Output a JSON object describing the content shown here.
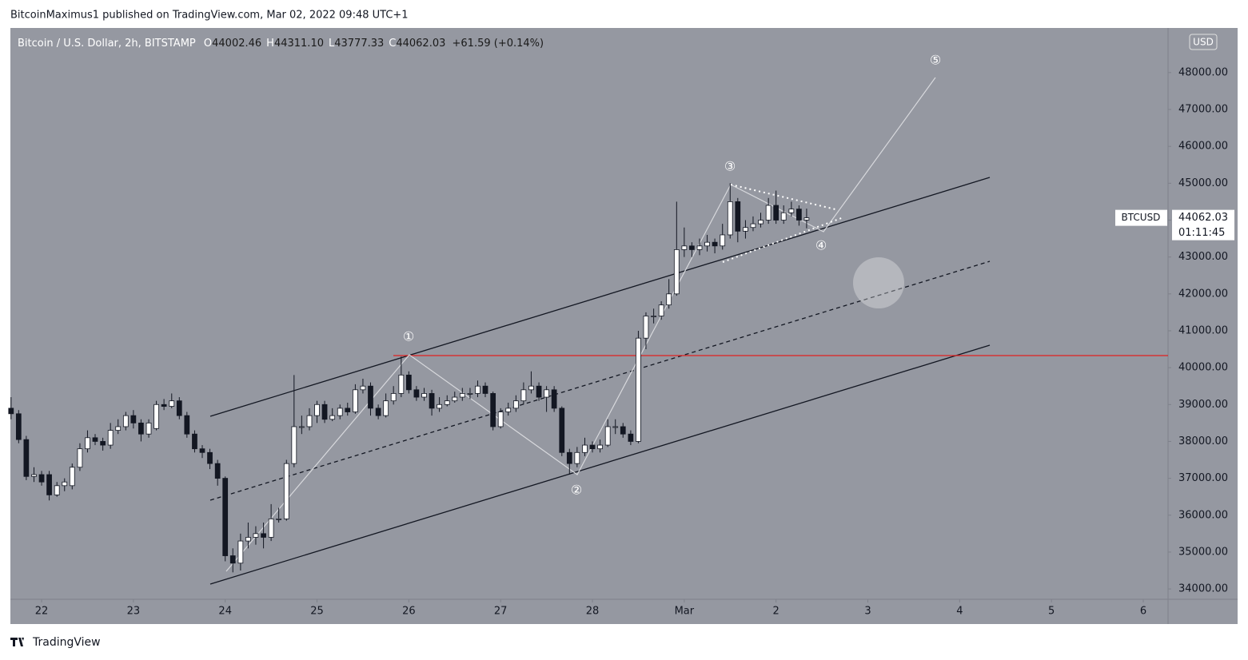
{
  "published": "BitcoinMaximus1 published on TradingView.com, Mar 02, 2022 09:48 UTC+1",
  "footer": "TradingView",
  "chart_data": {
    "type": "candlestick",
    "title": "Bitcoin / U.S. Dollar, 2h, BITSTAMP",
    "ohlc_legend": [
      {
        "label": "O",
        "value": "44002.46"
      },
      {
        "label": "H",
        "value": "44311.10"
      },
      {
        "label": "L",
        "value": "43777.33"
      },
      {
        "label": "C",
        "value": "44062.03"
      }
    ],
    "change": "+61.59 (+0.14%)",
    "currency": "USD",
    "price_label": {
      "symbol": "BTCUSD",
      "price": 44062.03,
      "countdown": "01:11:45"
    },
    "annotations": [
      "①",
      "②",
      "③",
      "④",
      "⑤"
    ],
    "up_color": "#ffffff",
    "down_color": "#131722",
    "background": "#9598a1",
    "xlim": [
      21.66,
      34.27
    ],
    "xticks": [
      22,
      23,
      24,
      25,
      26,
      27,
      28,
      {
        "value": 29,
        "label": "Mar"
      },
      {
        "value": 30,
        "label": "2"
      },
      {
        "value": 31,
        "label": "3"
      },
      {
        "value": 32,
        "label": "4"
      },
      {
        "value": 33,
        "label": "5"
      },
      {
        "value": 34,
        "label": "6"
      }
    ],
    "ylim": [
      33720,
      49210
    ],
    "yticks": [
      {
        "value": 34000,
        "label": "34000.00"
      },
      {
        "value": 35000,
        "label": "35000.00"
      },
      {
        "value": 36000,
        "label": "36000.00"
      },
      {
        "value": 37000,
        "label": "37000.00"
      },
      {
        "value": 38000,
        "label": "38000.00"
      },
      {
        "value": 39000,
        "label": "39000.00"
      },
      {
        "value": 40000,
        "label": "40000.00"
      },
      {
        "value": 41000,
        "label": "41000.00"
      },
      {
        "value": 42000,
        "label": "42000.00"
      },
      {
        "value": 43000,
        "label": "43000.00"
      },
      {
        "value": 44000,
        "label": "44000.00"
      },
      {
        "value": 45000,
        "label": "45000.00"
      },
      {
        "value": 46000,
        "label": "46000.00"
      },
      {
        "value": 47000,
        "label": "47000.00"
      },
      {
        "value": 48000,
        "label": "48000.00"
      }
    ],
    "x": [
      21.667,
      21.75,
      21.833,
      21.917,
      22,
      22.083,
      22.167,
      22.25,
      22.333,
      22.417,
      22.5,
      22.583,
      22.667,
      22.75,
      22.833,
      22.917,
      23,
      23.083,
      23.167,
      23.25,
      23.333,
      23.417,
      23.5,
      23.583,
      23.667,
      23.75,
      23.833,
      23.917,
      24,
      24.083,
      24.167,
      24.25,
      24.333,
      24.417,
      24.5,
      24.583,
      24.667,
      24.75,
      24.833,
      24.917,
      25,
      25.083,
      25.167,
      25.25,
      25.333,
      25.417,
      25.5,
      25.583,
      25.667,
      25.75,
      25.833,
      25.917,
      26,
      26.083,
      26.167,
      26.25,
      26.333,
      26.417,
      26.5,
      26.583,
      26.667,
      26.75,
      26.833,
      26.917,
      27,
      27.083,
      27.167,
      27.25,
      27.333,
      27.417,
      27.5,
      27.583,
      27.667,
      27.75,
      27.833,
      27.917,
      28,
      28.083,
      28.167,
      28.25,
      28.333,
      28.417,
      28.5,
      28.583,
      28.667,
      28.75,
      28.833,
      28.917,
      29,
      29.083,
      29.167,
      29.25,
      29.333,
      29.417,
      29.5,
      29.583,
      29.667,
      29.75,
      29.833,
      29.917,
      30,
      30.083,
      30.167,
      30.25,
      30.333
    ],
    "open": [
      38900,
      38750,
      38050,
      37050,
      37100,
      37100,
      36550,
      36800,
      36800,
      37300,
      37800,
      38100,
      38000,
      37900,
      38300,
      38400,
      38700,
      38500,
      38200,
      38350,
      39000,
      38950,
      39100,
      38700,
      38200,
      37800,
      37700,
      37400,
      37000,
      34900,
      34700,
      35300,
      35400,
      35500,
      35400,
      35900,
      35900,
      37400,
      38400,
      38400,
      38700,
      39000,
      38600,
      38700,
      38900,
      38800,
      39400,
      39500,
      38900,
      38700,
      39100,
      39300,
      39800,
      39400,
      39200,
      39300,
      38900,
      39000,
      39100,
      39200,
      39300,
      39300,
      39500,
      39300,
      38400,
      38800,
      38900,
      39100,
      39400,
      39500,
      39200,
      39400,
      38900,
      37700,
      37400,
      37700,
      37900,
      37800,
      37900,
      38400,
      38400,
      38200,
      38000,
      40800,
      41400,
      41400,
      41700,
      42000,
      43200,
      43300,
      43200,
      43300,
      43400,
      43300,
      43600,
      44500,
      43700,
      43800,
      43900,
      44000,
      44400,
      44000,
      44200,
      44300,
      44002.46
    ],
    "high": [
      39200,
      38850,
      38150,
      37300,
      37200,
      37200,
      36900,
      37000,
      37400,
      37950,
      38300,
      38200,
      38100,
      38500,
      38600,
      38800,
      38850,
      38600,
      38600,
      39100,
      39150,
      39300,
      39200,
      38800,
      38300,
      37900,
      37800,
      37500,
      37050,
      35100,
      35500,
      35800,
      35700,
      35800,
      36300,
      36200,
      37500,
      39800,
      38700,
      38900,
      39100,
      39100,
      38900,
      39000,
      39050,
      39550,
      39700,
      39600,
      39000,
      39300,
      39500,
      40300,
      39900,
      39500,
      39450,
      39400,
      39200,
      39250,
      39350,
      39450,
      39450,
      39650,
      39600,
      39350,
      38900,
      39050,
      39250,
      39600,
      39900,
      39600,
      39500,
      39500,
      38950,
      37800,
      37850,
      38100,
      38000,
      38050,
      38600,
      38600,
      38500,
      38300,
      41000,
      41500,
      41600,
      41800,
      42400,
      44500,
      43800,
      43400,
      43500,
      43600,
      43500,
      43900,
      45000,
      44600,
      44000,
      44100,
      44200,
      44600,
      44800,
      44400,
      44500,
      44400,
      44311.1
    ],
    "low": [
      38600,
      37950,
      36950,
      36900,
      36800,
      36400,
      36500,
      36650,
      36700,
      37200,
      37700,
      37900,
      37750,
      37800,
      38200,
      38300,
      38350,
      38000,
      38100,
      38300,
      38850,
      38900,
      38600,
      38100,
      37700,
      37550,
      37250,
      36800,
      34750,
      34450,
      34500,
      35100,
      35200,
      35100,
      35300,
      35800,
      35850,
      37300,
      38200,
      38300,
      38500,
      38500,
      38550,
      38600,
      38700,
      38750,
      39300,
      38700,
      38600,
      38650,
      39000,
      39200,
      39300,
      39100,
      39100,
      38700,
      38800,
      38950,
      39050,
      39100,
      39150,
      39200,
      39200,
      38300,
      38350,
      38700,
      38800,
      39000,
      39300,
      39100,
      38800,
      38800,
      37600,
      37100,
      37300,
      37600,
      37700,
      37700,
      37850,
      38200,
      38100,
      37900,
      37950,
      40500,
      41200,
      41300,
      41600,
      41950,
      43000,
      43000,
      43050,
      43150,
      43100,
      43200,
      43500,
      43400,
      43500,
      43700,
      43800,
      43900,
      43900,
      43900,
      44100,
      43850,
      43777.33
    ],
    "close": [
      38750,
      38050,
      37050,
      37100,
      36900,
      36550,
      36800,
      36900,
      37300,
      37800,
      38100,
      38000,
      37900,
      38300,
      38400,
      38700,
      38500,
      38200,
      38500,
      39000,
      38950,
      39100,
      38700,
      38200,
      37800,
      37700,
      37400,
      37000,
      34900,
      34700,
      35300,
      35400,
      35500,
      35400,
      35900,
      35900,
      37400,
      38400,
      38400,
      38700,
      39000,
      38600,
      38700,
      38900,
      38800,
      39400,
      39500,
      38900,
      38700,
      39100,
      39300,
      39800,
      39400,
      39200,
      39300,
      38900,
      39000,
      39100,
      39200,
      39300,
      39300,
      39500,
      39300,
      38400,
      38800,
      38900,
      39100,
      39400,
      39500,
      39200,
      39400,
      38900,
      37700,
      37400,
      37700,
      37900,
      37800,
      37900,
      38400,
      38400,
      38200,
      38000,
      40800,
      41400,
      41400,
      41700,
      42000,
      43200,
      43300,
      43200,
      43300,
      43400,
      43300,
      43600,
      44500,
      43700,
      43800,
      43900,
      44000,
      44400,
      44000,
      44200,
      44300,
      44000,
      44062.03
    ]
  }
}
